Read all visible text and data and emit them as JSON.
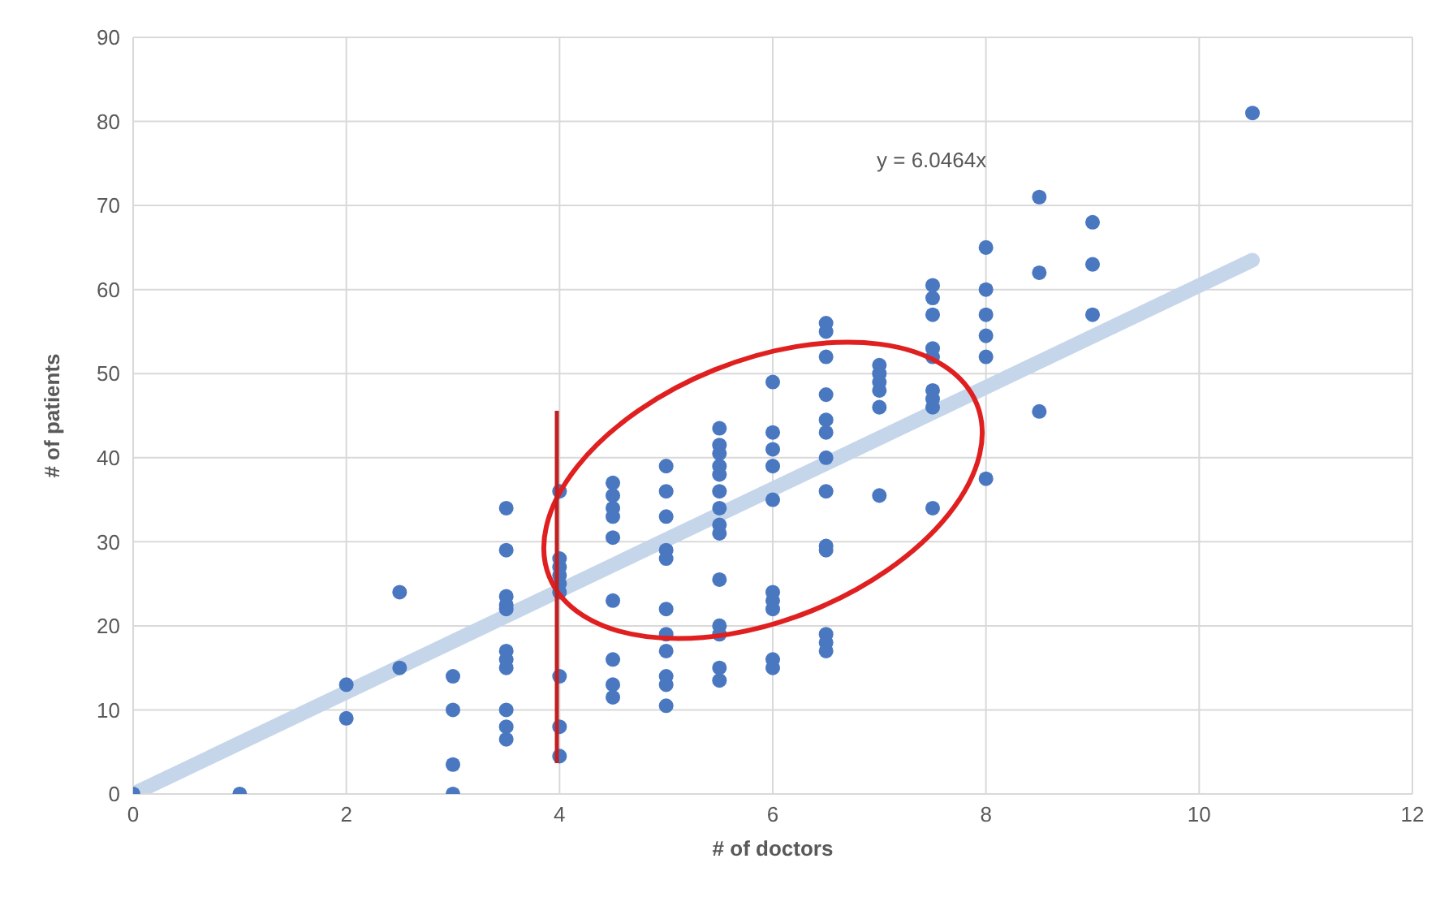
{
  "chart_data": {
    "type": "scatter",
    "xlabel": "# of doctors",
    "ylabel": "# of patients",
    "xlim": [
      0,
      12
    ],
    "xticks": [
      0,
      2,
      4,
      6,
      8,
      10,
      12
    ],
    "ylim": [
      0,
      90
    ],
    "yticks": [
      0,
      10,
      20,
      30,
      40,
      50,
      60,
      70,
      80,
      90
    ],
    "grid": true,
    "legend": false,
    "annotations": [
      "y = 6.0464x"
    ],
    "series": [
      {
        "marker": "circle",
        "color": "#4a78c0",
        "x": [
          0,
          1,
          2,
          2,
          2.5,
          2.5,
          3,
          3,
          3,
          3,
          3.5,
          3.5,
          3.5,
          3.5,
          3.5,
          3.5,
          3.5,
          3.5,
          3.5,
          3.5,
          3.5,
          4,
          4,
          4,
          4,
          4,
          4,
          4,
          4,
          4,
          4.5,
          4.5,
          4.5,
          4.5,
          4.5,
          4.5,
          4.5,
          4.5,
          4.5,
          5,
          5,
          5,
          5,
          5,
          5,
          5,
          5,
          5,
          5,
          5,
          5.5,
          5.5,
          5.5,
          5.5,
          5.5,
          5.5,
          5.5,
          5.5,
          5.5,
          5.5,
          5.5,
          5.5,
          5.5,
          5.5,
          6,
          6,
          6,
          6,
          6,
          6,
          6,
          6,
          6,
          6,
          6.5,
          6.5,
          6.5,
          6.5,
          6.5,
          6.5,
          6.5,
          6.5,
          6.5,
          6.5,
          6.5,
          6.5,
          6.5,
          7,
          7,
          7,
          7,
          7,
          7,
          7.5,
          7.5,
          7.5,
          7.5,
          7.5,
          7.5,
          7.5,
          7.5,
          7.5,
          8,
          8,
          8,
          8,
          8,
          8,
          8.5,
          8.5,
          8.5,
          9,
          9,
          9,
          10.5
        ],
        "values": [
          0,
          0,
          13,
          9,
          24,
          15,
          14,
          10,
          3.5,
          0,
          34,
          29,
          23.5,
          22.5,
          22,
          17,
          16,
          15,
          10,
          8,
          6.5,
          36,
          28,
          27,
          26,
          25,
          24,
          14,
          8,
          4.5,
          37,
          35.5,
          34,
          33,
          30.5,
          23,
          16,
          13,
          11.5,
          39,
          36,
          33,
          29,
          28,
          22,
          19,
          17,
          14,
          13,
          10.5,
          43.5,
          41.5,
          40.5,
          39,
          38,
          36,
          34,
          32,
          31,
          25.5,
          20,
          19,
          15,
          13.5,
          49,
          43,
          41,
          39,
          35,
          24,
          23,
          22,
          16,
          15,
          56,
          55,
          52,
          47.5,
          44.5,
          43,
          40,
          36,
          29.5,
          29,
          19,
          18,
          17,
          51,
          50,
          49,
          48,
          46,
          35.5,
          60.5,
          59,
          57,
          53,
          52,
          48,
          47,
          46,
          34,
          65,
          60,
          57,
          54.5,
          52,
          37.5,
          71,
          62,
          45.5,
          68,
          63,
          57,
          81
        ]
      },
      {
        "type": "line",
        "marker": "none",
        "color": "#c5d6ea",
        "x": [
          0,
          10.5
        ],
        "values": [
          0,
          63.5
        ]
      }
    ]
  }
}
